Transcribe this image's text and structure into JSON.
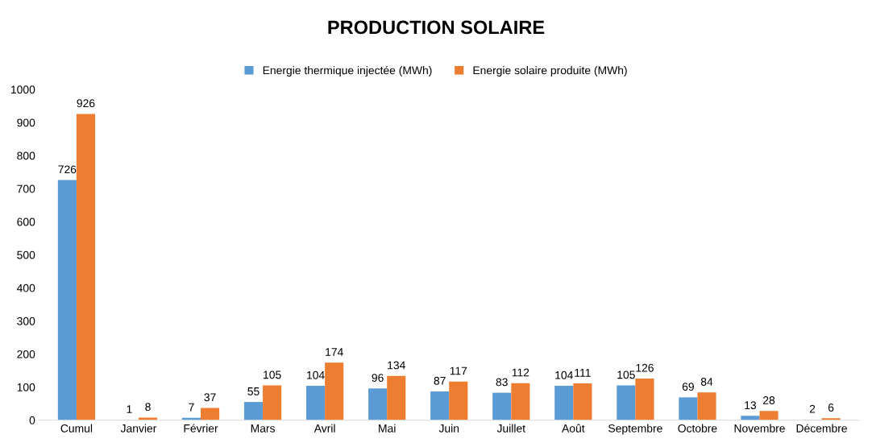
{
  "chart_data": {
    "type": "bar",
    "title": "PRODUCTION SOLAIRE",
    "categories": [
      "Cumul",
      "Janvier",
      "Février",
      "Mars",
      "Avril",
      "Mai",
      "Juin",
      "Juillet",
      "Août",
      "Septembre",
      "Octobre",
      "Novembre",
      "Décembre"
    ],
    "series": [
      {
        "name": "Energie thermique injectée (MWh)",
        "color": "#5b9bd5",
        "values": [
          726,
          1,
          7,
          55,
          104,
          96,
          87,
          83,
          104,
          105,
          69,
          13,
          2
        ]
      },
      {
        "name": "Energie solaire produite (MWh)",
        "color": "#ed7d31",
        "values": [
          926,
          8,
          37,
          105,
          174,
          134,
          117,
          112,
          111,
          126,
          84,
          28,
          6
        ]
      }
    ],
    "ylim": [
      0,
      1000
    ],
    "yticks": [
      0,
      100,
      200,
      300,
      400,
      500,
      600,
      700,
      800,
      900,
      1000
    ],
    "data_labels": true,
    "legend": "top",
    "grid": false
  }
}
